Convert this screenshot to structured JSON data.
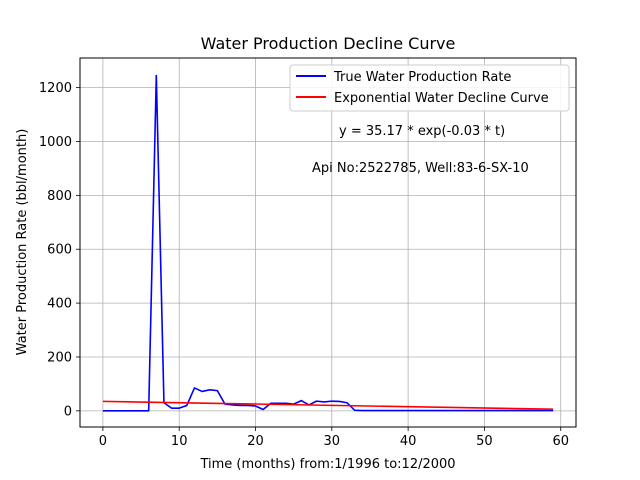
{
  "chart_data": {
    "type": "line",
    "title": "Water Production Decline Curve",
    "xlabel": "Time (months) from:1/1996 to:12/2000",
    "ylabel": "Water Production Rate (bbl/month)",
    "xlim": [
      -3,
      62
    ],
    "ylim": [
      -60,
      1310
    ],
    "xticks": [
      0,
      10,
      20,
      30,
      40,
      50,
      60
    ],
    "yticks": [
      0,
      200,
      400,
      600,
      800,
      1000,
      1200
    ],
    "grid": true,
    "legend_position": "top-right",
    "series": [
      {
        "name": "True Water Production Rate",
        "color": "#0000ff",
        "x": [
          0,
          1,
          2,
          3,
          4,
          5,
          6,
          7,
          8,
          9,
          10,
          11,
          12,
          13,
          14,
          15,
          16,
          17,
          18,
          19,
          20,
          21,
          22,
          23,
          24,
          25,
          26,
          27,
          28,
          29,
          30,
          31,
          32,
          33,
          34,
          35,
          36,
          37,
          38,
          39,
          40,
          41,
          42,
          43,
          44,
          45,
          46,
          47,
          48,
          49,
          50,
          51,
          52,
          53,
          54,
          55,
          56,
          57,
          58,
          59
        ],
        "y": [
          0,
          0,
          0,
          0,
          0,
          0,
          0,
          1245,
          30,
          10,
          10,
          20,
          85,
          72,
          78,
          75,
          25,
          22,
          20,
          20,
          18,
          5,
          28,
          28,
          28,
          25,
          38,
          22,
          36,
          33,
          36,
          35,
          30,
          2,
          1,
          1,
          1,
          1,
          1,
          1,
          1,
          1,
          1,
          1,
          1,
          1,
          1,
          1,
          1,
          1,
          1,
          1,
          1,
          1,
          1,
          1,
          1,
          1,
          1,
          1
        ]
      },
      {
        "name": "Exponential Water Decline Curve",
        "color": "#ff0000",
        "x": [
          0,
          59
        ],
        "y": [
          35.17,
          5.97
        ]
      }
    ],
    "annotations": [
      "y = 35.17 * exp(-0.03 * t)",
      "Api No:2522785, Well:83-6-SX-10"
    ]
  }
}
